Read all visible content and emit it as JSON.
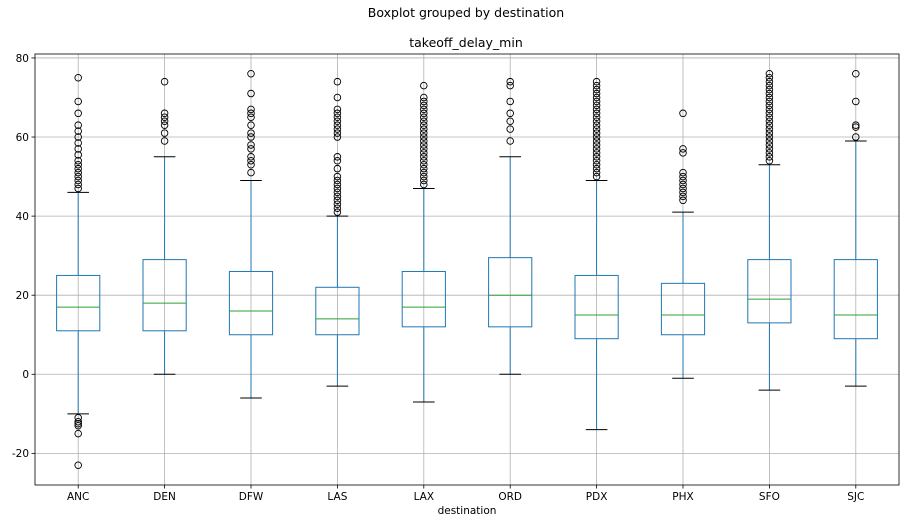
{
  "chart_data": {
    "type": "box",
    "suptitle": "Boxplot grouped by destination",
    "title": "takeoff_delay_min",
    "xlabel": "destination",
    "ylabel": "",
    "ylim": [
      -28,
      81
    ],
    "yticks": [
      -20,
      0,
      20,
      40,
      60,
      80
    ],
    "grid": true,
    "colors": {
      "box": "#1f77b4",
      "median": "#2ca02c",
      "whisker": "#1f77b4",
      "cap": "#000000",
      "grid": "#b0b0b0"
    },
    "categories": [
      "ANC",
      "DEN",
      "DFW",
      "LAS",
      "LAX",
      "ORD",
      "PDX",
      "PHX",
      "SFO",
      "SJC"
    ],
    "boxes": [
      {
        "category": "ANC",
        "whisker_low": -10,
        "q1": 11,
        "median": 17,
        "q3": 25,
        "whisker_high": 46,
        "outliers": [
          75,
          69,
          66,
          63,
          61.5,
          60,
          58.5,
          57,
          55.5,
          54,
          53,
          52,
          51,
          50,
          49,
          48,
          47,
          -11,
          -12,
          -12.5,
          -13,
          -15,
          -23
        ]
      },
      {
        "category": "DEN",
        "whisker_low": 0,
        "q1": 11,
        "median": 18,
        "q3": 29,
        "whisker_high": 55,
        "outliers": [
          74,
          66,
          65,
          64,
          63,
          61,
          59
        ]
      },
      {
        "category": "DFW",
        "whisker_low": -6,
        "q1": 10,
        "median": 16,
        "q3": 26,
        "whisker_high": 49,
        "outliers": [
          76,
          71,
          67,
          66,
          65,
          63,
          61,
          60,
          58,
          57,
          55,
          54,
          53,
          51
        ]
      },
      {
        "category": "LAS",
        "whisker_low": -3,
        "q1": 10,
        "median": 14,
        "q3": 22,
        "whisker_high": 40,
        "outliers": [
          74,
          70,
          67,
          66,
          65,
          64,
          63,
          62,
          61,
          60,
          55,
          54,
          52,
          50,
          49,
          48,
          47,
          46,
          45,
          44,
          43,
          42,
          41
        ]
      },
      {
        "category": "LAX",
        "whisker_low": -7,
        "q1": 12,
        "median": 17,
        "q3": 26,
        "whisker_high": 47,
        "outliers": [
          73,
          70,
          69,
          68,
          67,
          66,
          65,
          64,
          63,
          62,
          61,
          60,
          59,
          58,
          57,
          56,
          55,
          54,
          53,
          52,
          51,
          50,
          49,
          48
        ]
      },
      {
        "category": "ORD",
        "whisker_low": 0,
        "q1": 12,
        "median": 20,
        "q3": 29.5,
        "whisker_high": 55,
        "outliers": [
          74,
          73,
          69,
          66,
          64,
          62,
          59
        ]
      },
      {
        "category": "PDX",
        "whisker_low": -14,
        "q1": 9,
        "median": 15,
        "q3": 25,
        "whisker_high": 49,
        "outliers": [
          74,
          73,
          72,
          71,
          70,
          69,
          68,
          67,
          66,
          65,
          64,
          63,
          62,
          61,
          60,
          59,
          58,
          57,
          56,
          55,
          54,
          53,
          52,
          51,
          50
        ]
      },
      {
        "category": "PHX",
        "whisker_low": -1,
        "q1": 10,
        "median": 15,
        "q3": 23,
        "whisker_high": 41,
        "outliers": [
          66,
          57,
          56,
          51,
          50,
          49,
          48,
          47,
          46,
          45,
          44
        ]
      },
      {
        "category": "SFO",
        "whisker_low": -4,
        "q1": 13,
        "median": 19,
        "q3": 29,
        "whisker_high": 53,
        "outliers": [
          76,
          75,
          74,
          73,
          72,
          71,
          70,
          69,
          68,
          67,
          66,
          65,
          64,
          63,
          62,
          61,
          60,
          59,
          58,
          57,
          56,
          55,
          54
        ]
      },
      {
        "category": "SJC",
        "whisker_low": -3,
        "q1": 9,
        "median": 15,
        "q3": 29,
        "whisker_high": 59,
        "outliers": [
          76,
          69,
          63,
          62.5,
          60
        ]
      }
    ]
  }
}
